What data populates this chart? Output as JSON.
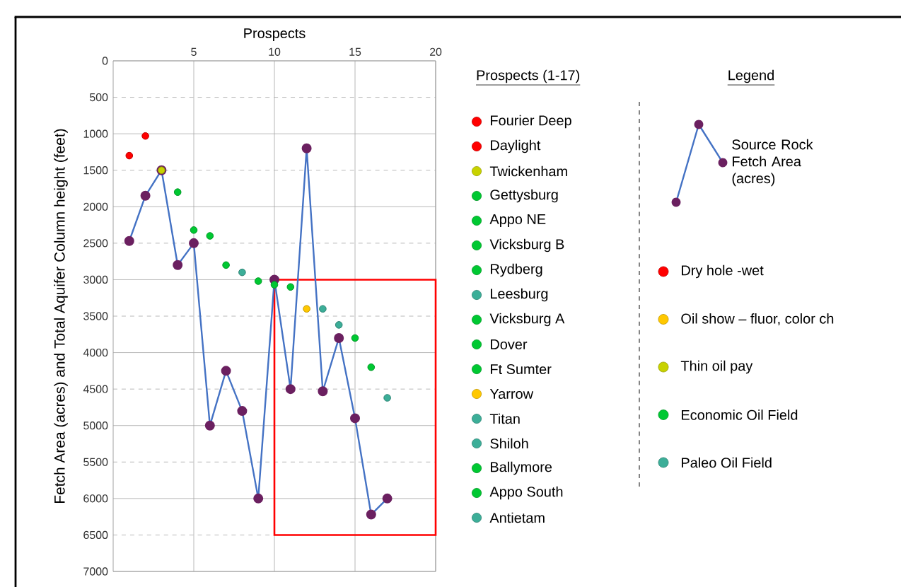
{
  "chart_data": {
    "type": "scatter",
    "xlabel": "Prospects",
    "ylabel": "Fetch Area (acres)     and     Total Aquifer Column height (feet)",
    "legend_title": "Legend",
    "legend": "right",
    "grid": true,
    "marker": "circle",
    "xlim": [
      0,
      20
    ],
    "xticks": [
      5,
      10,
      15,
      20
    ],
    "ylim": [
      7000,
      0
    ],
    "yticks": [
      0,
      500,
      1000,
      1500,
      2000,
      2500,
      3000,
      3500,
      4000,
      4500,
      5000,
      5500,
      6000,
      6500,
      7000
    ],
    "series": [
      {
        "name": "Source Rock Fetch Area (acres)",
        "type": "line",
        "color": "#4472c4",
        "x": [
          1,
          2,
          3,
          4,
          5,
          6,
          7,
          8,
          9,
          10,
          11,
          12,
          13,
          14,
          15,
          16,
          17
        ],
        "values": [
          2470,
          1850,
          1500,
          2800,
          2500,
          5000,
          4250,
          4800,
          6000,
          3000,
          4500,
          1200,
          4530,
          3800,
          4900,
          6220,
          6000
        ]
      },
      {
        "name": "Dry hole -wet",
        "color": "#ff0000",
        "x": [
          1,
          2
        ],
        "values": [
          1300,
          1030
        ]
      },
      {
        "name": "Oil show – fluor, color ch",
        "color": "#ffc800",
        "x": [
          12
        ],
        "values": [
          3400
        ]
      },
      {
        "name": "Thin oil pay",
        "color": "#c8d200",
        "x": [
          3
        ],
        "values": [
          1500
        ]
      },
      {
        "name": "Economic Oil Field",
        "color": "#00c832",
        "x": [
          4,
          5,
          6,
          7,
          9,
          10,
          11,
          15,
          16
        ],
        "values": [
          1800,
          2320,
          2400,
          2800,
          3020,
          3070,
          3100,
          3800,
          4200
        ]
      },
      {
        "name": "Paleo Oil Field",
        "color": "#3cae98",
        "x": [
          8,
          13,
          14,
          17
        ],
        "values": [
          2900,
          3400,
          3620,
          4620
        ]
      }
    ],
    "annotations": [
      "Prospects (1-17)",
      "Fourier Deep",
      "Daylight",
      "Twickenham",
      "Gettysburg",
      "Appo NE",
      "Vicksburg B",
      "Rydberg",
      "Leesburg",
      "Vicksburg A",
      "Dover",
      "Ft Sumter",
      "Yarrow",
      "Titan",
      "Shiloh",
      "Ballymore",
      "Appo South",
      "Antietam"
    ]
  }
}
